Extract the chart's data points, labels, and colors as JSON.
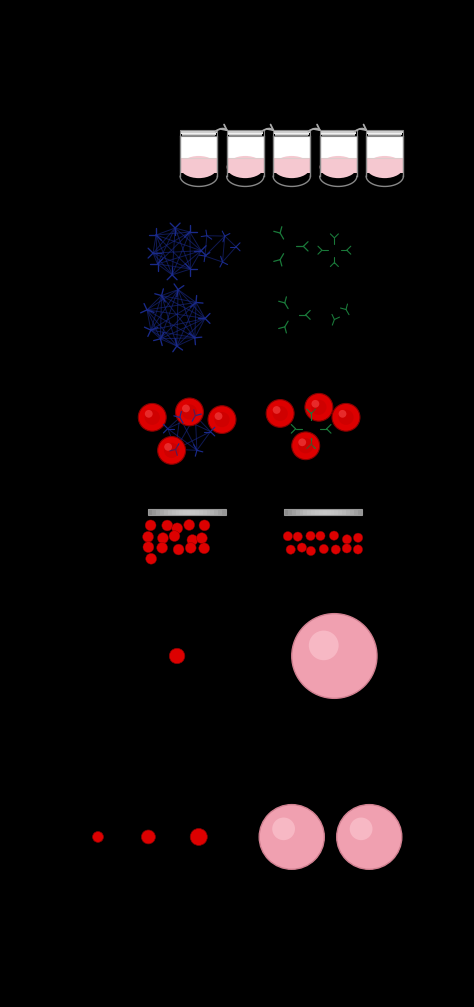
{
  "background_color": "#000000",
  "fig_width": 4.74,
  "fig_height": 10.07,
  "vial_color_fill": "#f5c8d0",
  "vial_color_white": "#ffffff",
  "vial_rim_color": "#b8b8b8",
  "vial_rim_highlight": "#e8e8e8",
  "antibody_blue": "#1a2a8a",
  "antibody_green": "#1a7a3a",
  "rbc_color": "#dd0000",
  "rbc_highlight": "#ff4444",
  "button_color": "#f0a0b0",
  "button_edge": "#d08090",
  "arrow_color": "#aaaaaa"
}
